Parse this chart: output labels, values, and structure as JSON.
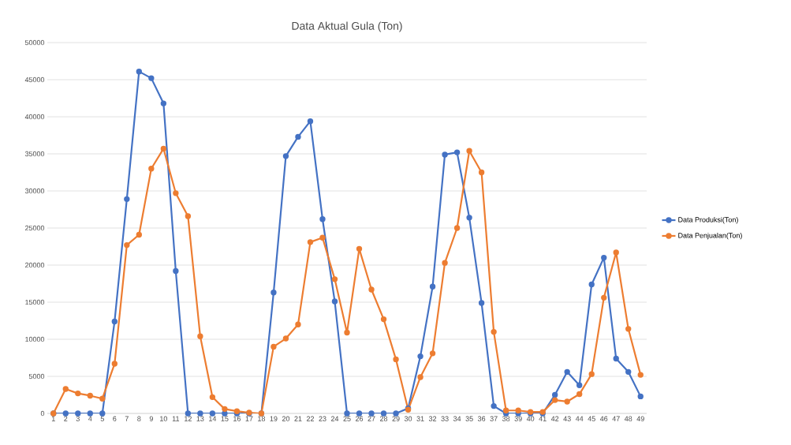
{
  "chart_data": {
    "type": "line",
    "title": "Data Aktual Gula (Ton)",
    "categories": [
      "1",
      "2",
      "3",
      "4",
      "5",
      "6",
      "7",
      "8",
      "9",
      "10",
      "11",
      "12",
      "13",
      "14",
      "15",
      "16",
      "17",
      "18",
      "19",
      "20",
      "21",
      "22",
      "23",
      "24",
      "25",
      "26",
      "27",
      "28",
      "29",
      "30",
      "31",
      "32",
      "33",
      "34",
      "35",
      "36",
      "37",
      "38",
      "39",
      "40",
      "41",
      "42",
      "43",
      "44",
      "45",
      "46",
      "47",
      "48",
      "49"
    ],
    "series": [
      {
        "name": "Data Produksi(Ton)",
        "color": "#4472c4",
        "values": [
          0,
          0,
          0,
          0,
          0,
          12400,
          28900,
          46100,
          45200,
          41800,
          19200,
          0,
          0,
          0,
          0,
          0,
          0,
          0,
          16300,
          34700,
          37300,
          39400,
          26200,
          15100,
          0,
          0,
          0,
          0,
          0,
          700,
          7700,
          17100,
          34900,
          35200,
          26400,
          14900,
          1000,
          0,
          0,
          0,
          0,
          2500,
          5600,
          3800,
          17400,
          21000,
          7400,
          5600,
          2300
        ]
      },
      {
        "name": "Data Penjualan(Ton)",
        "color": "#ed7d31",
        "values": [
          0,
          3300,
          2700,
          2400,
          2000,
          6700,
          22700,
          24100,
          33000,
          35700,
          29700,
          26600,
          10400,
          2200,
          600,
          300,
          100,
          0,
          9000,
          10100,
          12000,
          23100,
          23700,
          18100,
          10900,
          22200,
          16700,
          12700,
          7300,
          500,
          4900,
          8100,
          20300,
          25000,
          35400,
          32500,
          11000,
          400,
          400,
          200,
          200,
          1800,
          1600,
          2600,
          5300,
          15600,
          21700,
          11400,
          5200
        ]
      }
    ],
    "ylim": [
      0,
      50000
    ],
    "yticks": [
      0,
      5000,
      10000,
      15000,
      20000,
      25000,
      30000,
      35000,
      40000,
      45000,
      50000
    ],
    "grid": "y",
    "legend": "right",
    "marker": "circle",
    "line_style": "solid"
  }
}
